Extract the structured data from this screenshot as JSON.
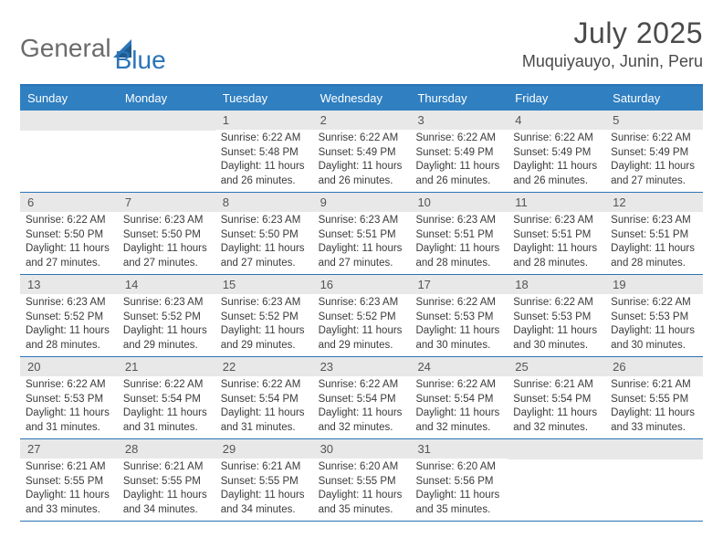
{
  "logo": {
    "text1": "General",
    "text2": "Blue"
  },
  "title": "July 2025",
  "location": "Muquiyauyo, Junin, Peru",
  "colors": {
    "header_bg": "#2f7fc1",
    "rule": "#2b74b8",
    "daynum_bg": "#e8e8e8",
    "text": "#3a3a3a",
    "logo_gray": "#6b6b6b",
    "logo_blue": "#2b74b8",
    "page_bg": "#ffffff"
  },
  "typography": {
    "title_fontsize": 32,
    "location_fontsize": 18,
    "dow_fontsize": 13,
    "daynum_fontsize": 13,
    "body_fontsize": 11.5
  },
  "days_of_week": [
    "Sunday",
    "Monday",
    "Tuesday",
    "Wednesday",
    "Thursday",
    "Friday",
    "Saturday"
  ],
  "weeks": [
    [
      {
        "n": "",
        "sunrise": "",
        "sunset": "",
        "daylight": ""
      },
      {
        "n": "",
        "sunrise": "",
        "sunset": "",
        "daylight": ""
      },
      {
        "n": "1",
        "sunrise": "Sunrise: 6:22 AM",
        "sunset": "Sunset: 5:48 PM",
        "daylight": "Daylight: 11 hours and 26 minutes."
      },
      {
        "n": "2",
        "sunrise": "Sunrise: 6:22 AM",
        "sunset": "Sunset: 5:49 PM",
        "daylight": "Daylight: 11 hours and 26 minutes."
      },
      {
        "n": "3",
        "sunrise": "Sunrise: 6:22 AM",
        "sunset": "Sunset: 5:49 PM",
        "daylight": "Daylight: 11 hours and 26 minutes."
      },
      {
        "n": "4",
        "sunrise": "Sunrise: 6:22 AM",
        "sunset": "Sunset: 5:49 PM",
        "daylight": "Daylight: 11 hours and 26 minutes."
      },
      {
        "n": "5",
        "sunrise": "Sunrise: 6:22 AM",
        "sunset": "Sunset: 5:49 PM",
        "daylight": "Daylight: 11 hours and 27 minutes."
      }
    ],
    [
      {
        "n": "6",
        "sunrise": "Sunrise: 6:22 AM",
        "sunset": "Sunset: 5:50 PM",
        "daylight": "Daylight: 11 hours and 27 minutes."
      },
      {
        "n": "7",
        "sunrise": "Sunrise: 6:23 AM",
        "sunset": "Sunset: 5:50 PM",
        "daylight": "Daylight: 11 hours and 27 minutes."
      },
      {
        "n": "8",
        "sunrise": "Sunrise: 6:23 AM",
        "sunset": "Sunset: 5:50 PM",
        "daylight": "Daylight: 11 hours and 27 minutes."
      },
      {
        "n": "9",
        "sunrise": "Sunrise: 6:23 AM",
        "sunset": "Sunset: 5:51 PM",
        "daylight": "Daylight: 11 hours and 27 minutes."
      },
      {
        "n": "10",
        "sunrise": "Sunrise: 6:23 AM",
        "sunset": "Sunset: 5:51 PM",
        "daylight": "Daylight: 11 hours and 28 minutes."
      },
      {
        "n": "11",
        "sunrise": "Sunrise: 6:23 AM",
        "sunset": "Sunset: 5:51 PM",
        "daylight": "Daylight: 11 hours and 28 minutes."
      },
      {
        "n": "12",
        "sunrise": "Sunrise: 6:23 AM",
        "sunset": "Sunset: 5:51 PM",
        "daylight": "Daylight: 11 hours and 28 minutes."
      }
    ],
    [
      {
        "n": "13",
        "sunrise": "Sunrise: 6:23 AM",
        "sunset": "Sunset: 5:52 PM",
        "daylight": "Daylight: 11 hours and 28 minutes."
      },
      {
        "n": "14",
        "sunrise": "Sunrise: 6:23 AM",
        "sunset": "Sunset: 5:52 PM",
        "daylight": "Daylight: 11 hours and 29 minutes."
      },
      {
        "n": "15",
        "sunrise": "Sunrise: 6:23 AM",
        "sunset": "Sunset: 5:52 PM",
        "daylight": "Daylight: 11 hours and 29 minutes."
      },
      {
        "n": "16",
        "sunrise": "Sunrise: 6:23 AM",
        "sunset": "Sunset: 5:52 PM",
        "daylight": "Daylight: 11 hours and 29 minutes."
      },
      {
        "n": "17",
        "sunrise": "Sunrise: 6:22 AM",
        "sunset": "Sunset: 5:53 PM",
        "daylight": "Daylight: 11 hours and 30 minutes."
      },
      {
        "n": "18",
        "sunrise": "Sunrise: 6:22 AM",
        "sunset": "Sunset: 5:53 PM",
        "daylight": "Daylight: 11 hours and 30 minutes."
      },
      {
        "n": "19",
        "sunrise": "Sunrise: 6:22 AM",
        "sunset": "Sunset: 5:53 PM",
        "daylight": "Daylight: 11 hours and 30 minutes."
      }
    ],
    [
      {
        "n": "20",
        "sunrise": "Sunrise: 6:22 AM",
        "sunset": "Sunset: 5:53 PM",
        "daylight": "Daylight: 11 hours and 31 minutes."
      },
      {
        "n": "21",
        "sunrise": "Sunrise: 6:22 AM",
        "sunset": "Sunset: 5:54 PM",
        "daylight": "Daylight: 11 hours and 31 minutes."
      },
      {
        "n": "22",
        "sunrise": "Sunrise: 6:22 AM",
        "sunset": "Sunset: 5:54 PM",
        "daylight": "Daylight: 11 hours and 31 minutes."
      },
      {
        "n": "23",
        "sunrise": "Sunrise: 6:22 AM",
        "sunset": "Sunset: 5:54 PM",
        "daylight": "Daylight: 11 hours and 32 minutes."
      },
      {
        "n": "24",
        "sunrise": "Sunrise: 6:22 AM",
        "sunset": "Sunset: 5:54 PM",
        "daylight": "Daylight: 11 hours and 32 minutes."
      },
      {
        "n": "25",
        "sunrise": "Sunrise: 6:21 AM",
        "sunset": "Sunset: 5:54 PM",
        "daylight": "Daylight: 11 hours and 32 minutes."
      },
      {
        "n": "26",
        "sunrise": "Sunrise: 6:21 AM",
        "sunset": "Sunset: 5:55 PM",
        "daylight": "Daylight: 11 hours and 33 minutes."
      }
    ],
    [
      {
        "n": "27",
        "sunrise": "Sunrise: 6:21 AM",
        "sunset": "Sunset: 5:55 PM",
        "daylight": "Daylight: 11 hours and 33 minutes."
      },
      {
        "n": "28",
        "sunrise": "Sunrise: 6:21 AM",
        "sunset": "Sunset: 5:55 PM",
        "daylight": "Daylight: 11 hours and 34 minutes."
      },
      {
        "n": "29",
        "sunrise": "Sunrise: 6:21 AM",
        "sunset": "Sunset: 5:55 PM",
        "daylight": "Daylight: 11 hours and 34 minutes."
      },
      {
        "n": "30",
        "sunrise": "Sunrise: 6:20 AM",
        "sunset": "Sunset: 5:55 PM",
        "daylight": "Daylight: 11 hours and 35 minutes."
      },
      {
        "n": "31",
        "sunrise": "Sunrise: 6:20 AM",
        "sunset": "Sunset: 5:56 PM",
        "daylight": "Daylight: 11 hours and 35 minutes."
      },
      {
        "n": "",
        "sunrise": "",
        "sunset": "",
        "daylight": ""
      },
      {
        "n": "",
        "sunrise": "",
        "sunset": "",
        "daylight": ""
      }
    ]
  ]
}
